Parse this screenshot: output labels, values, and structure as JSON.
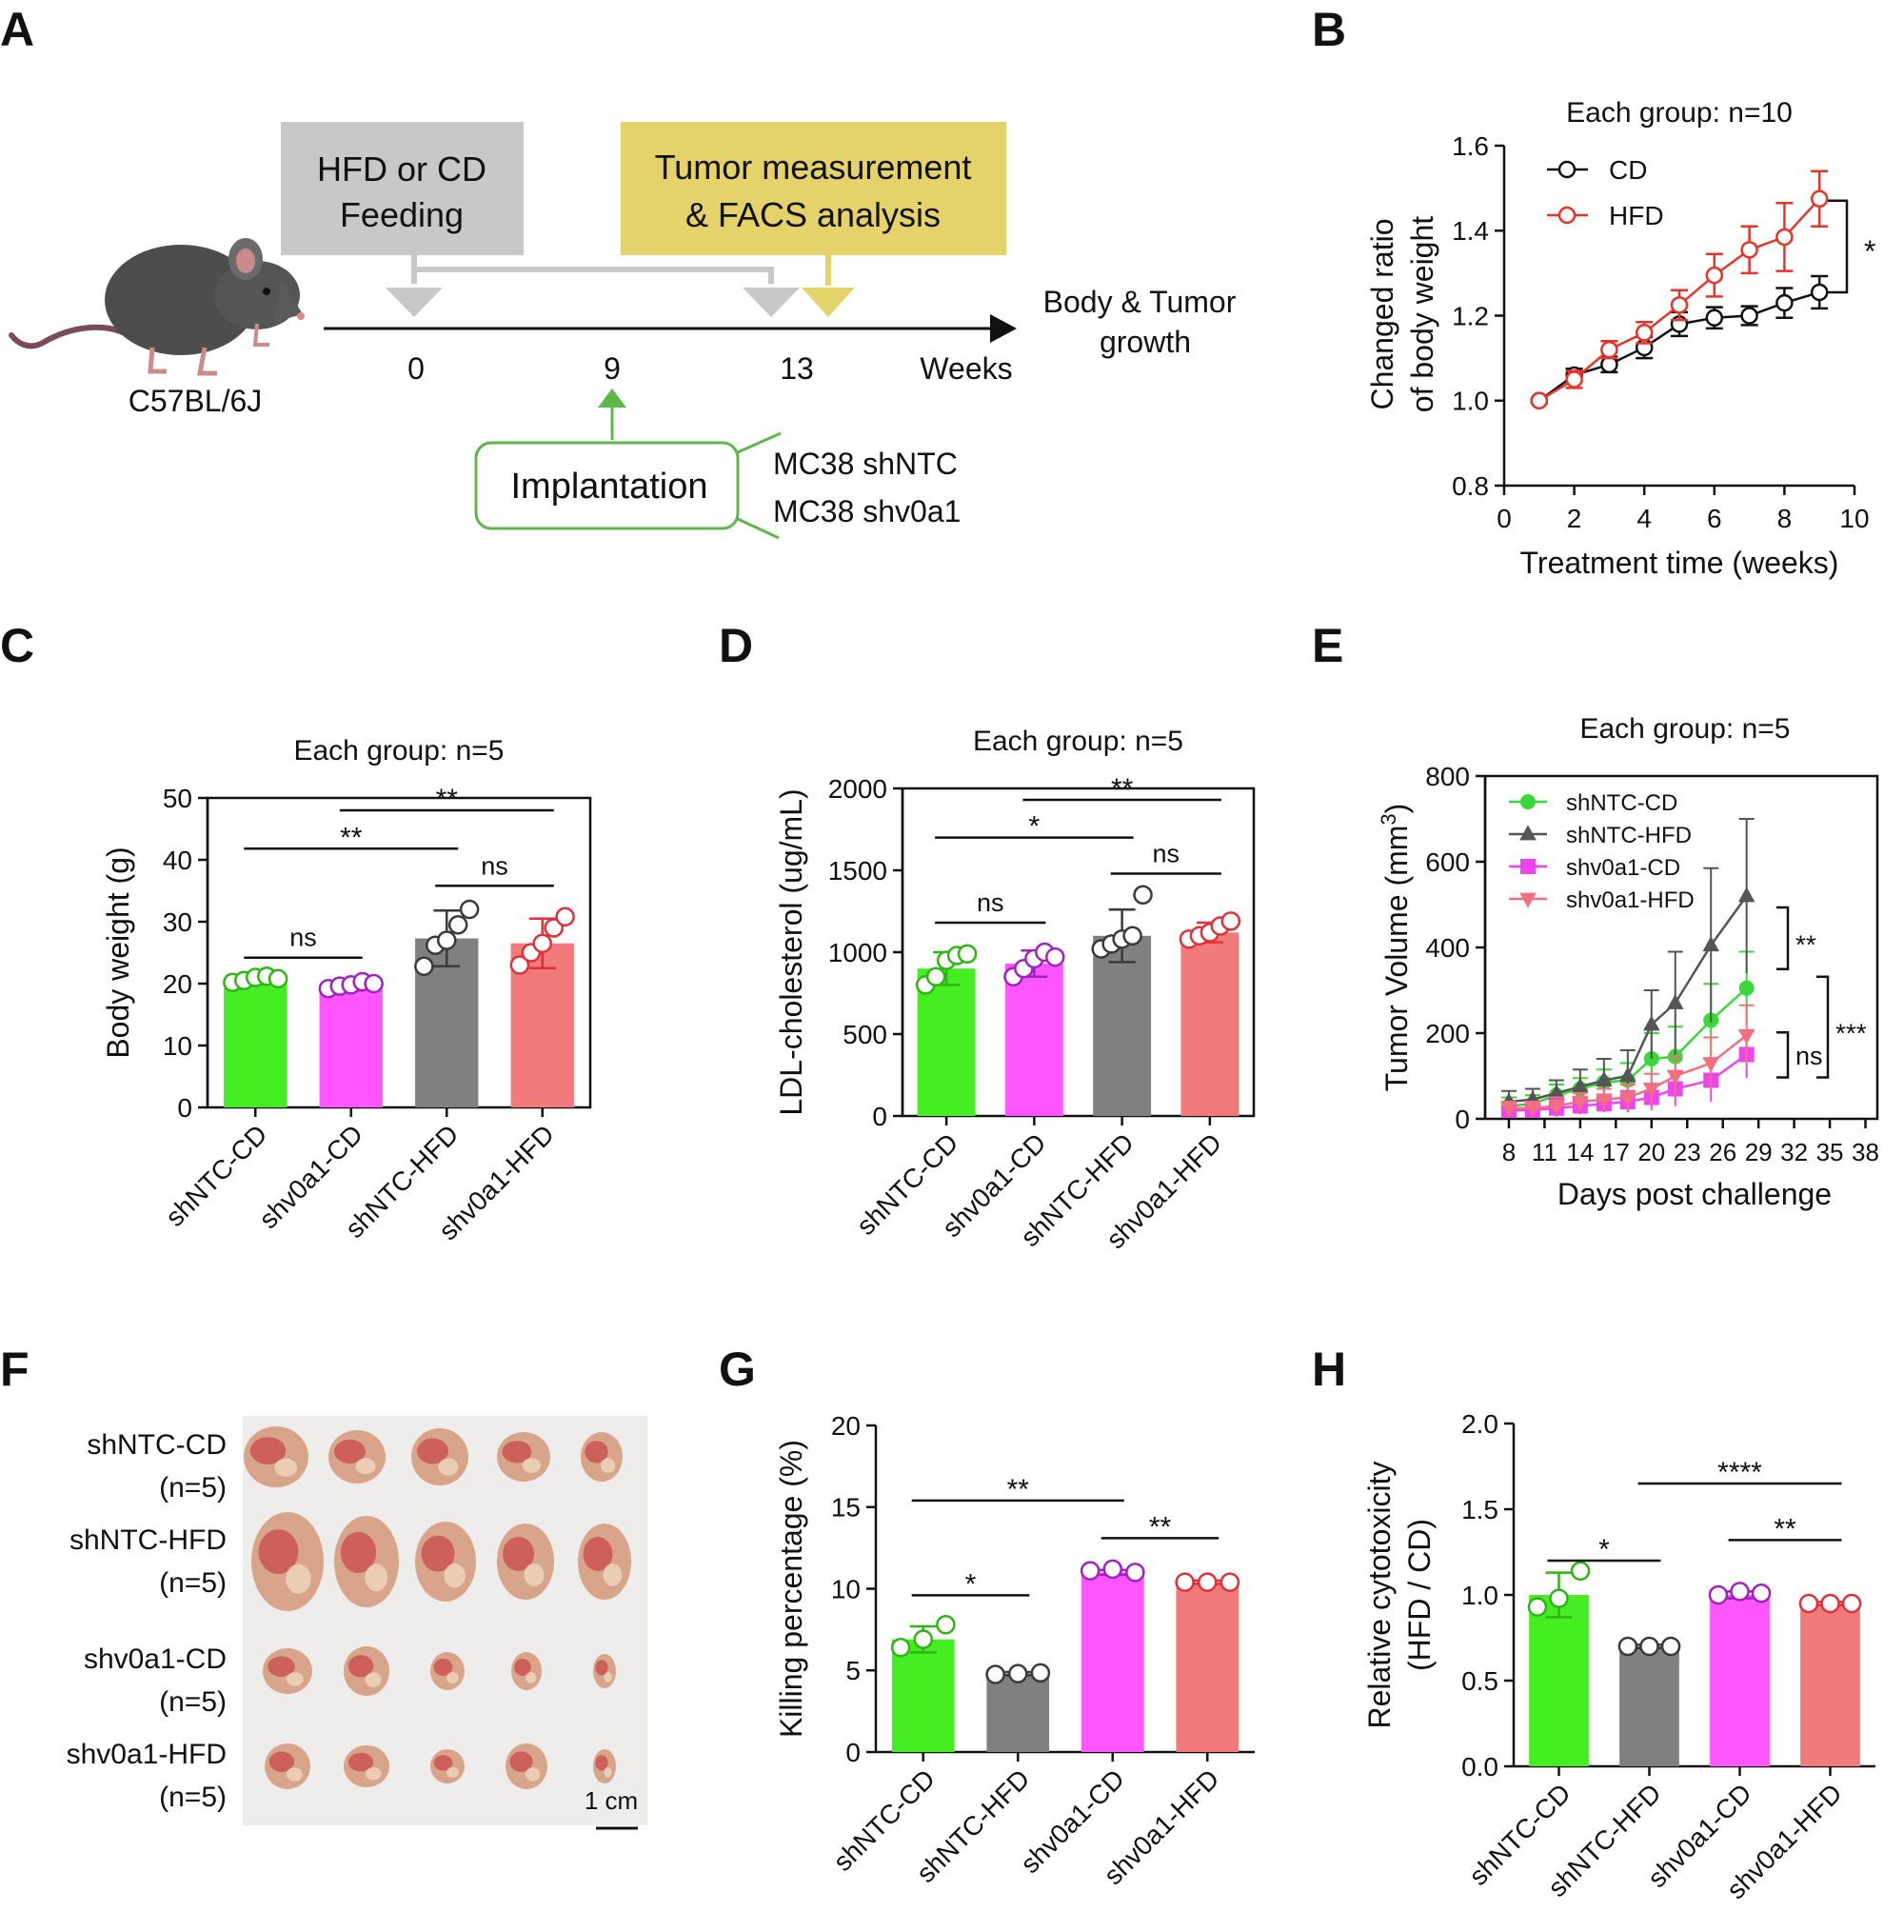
{
  "panel_labels": [
    "A",
    "B",
    "C",
    "D",
    "E",
    "F",
    "G",
    "H"
  ],
  "panelA": {
    "feeding": [
      "HFD or CD",
      "Feeding"
    ],
    "measure": [
      "Tumor measurement",
      "& FACS analysis"
    ],
    "mouse_label": "C57BL/6J",
    "ticks": [
      "0",
      "9",
      "13"
    ],
    "axis_unit": "Weeks",
    "end_label": [
      "Body & Tumor",
      "growth"
    ],
    "implantation": "Implantation",
    "lines": [
      "MC38 shNTC",
      "MC38 shv0a1"
    ],
    "colors": {
      "feeding_box": "#c8c8c8",
      "measure_box": "#e4d36a",
      "implant": "#5cb848"
    }
  },
  "panelF": {
    "rows": [
      {
        "label": "shNTC-CD",
        "n": "(n=5)"
      },
      {
        "label": "shNTC-HFD",
        "n": "(n=5)"
      },
      {
        "label": "shv0a1-CD",
        "n": "(n=5)"
      },
      {
        "label": "shv0a1-HFD",
        "n": "(n=5)"
      }
    ],
    "scale": "1 cm"
  },
  "chart_data": [
    {
      "panel": "B",
      "type": "line",
      "title": "Each group: n=10",
      "xlabel": "Treatment time (weeks)",
      "ylabel": [
        "Changed ratio",
        "of body weight"
      ],
      "xlim": [
        0,
        10
      ],
      "ylim": [
        0.8,
        1.6
      ],
      "xticks": [
        0,
        2,
        4,
        6,
        8,
        10
      ],
      "yticks": [
        0.8,
        1.0,
        1.2,
        1.4,
        1.6
      ],
      "ytick_labels": [
        "0.8",
        "1.0",
        "1.2",
        "1.4",
        "1.6"
      ],
      "x": [
        1,
        2,
        3,
        4,
        5,
        6,
        7,
        8,
        9
      ],
      "legend_position": "top-left",
      "series": [
        {
          "name": "CD",
          "color": "#111111",
          "values": [
            1.0,
            1.06,
            1.085,
            1.125,
            1.18,
            1.195,
            1.2,
            1.23,
            1.255
          ],
          "err": [
            0.005,
            0.015,
            0.018,
            0.025,
            0.028,
            0.025,
            0.022,
            0.035,
            0.038
          ]
        },
        {
          "name": "HFD",
          "color": "#e8332b",
          "values": [
            1.0,
            1.05,
            1.12,
            1.16,
            1.225,
            1.295,
            1.355,
            1.385,
            1.475
          ],
          "err": [
            0.005,
            0.02,
            0.02,
            0.025,
            0.035,
            0.05,
            0.055,
            0.08,
            0.065
          ]
        }
      ],
      "significance": "*"
    },
    {
      "panel": "C",
      "type": "bar",
      "title": "Each group: n=5",
      "ylabel": "Body weight (g)",
      "ylim": [
        0,
        50
      ],
      "yticks": [
        0,
        10,
        20,
        30,
        40,
        50
      ],
      "categories": [
        "shNTC-CD",
        "shv0a1-CD",
        "shNTC-HFD",
        "shv0a1-HFD"
      ],
      "colors": [
        "#44ee22",
        "#ff55ff",
        "#808080",
        "#f27a7a"
      ],
      "edge_colors": [
        "#2fb512",
        "#a020c0",
        "#3a3a3a",
        "#e0303a"
      ],
      "values": [
        20.8,
        19.8,
        27.3,
        26.5
      ],
      "err": [
        0.9,
        0.9,
        4.5,
        4.0
      ],
      "points": [
        [
          20.2,
          20.5,
          21.0,
          21.2,
          20.8
        ],
        [
          19.2,
          19.6,
          19.8,
          20.3,
          20.0
        ],
        [
          22.8,
          26.2,
          27.0,
          29.5,
          32.0
        ],
        [
          23.0,
          25.0,
          26.5,
          29.0,
          30.8
        ]
      ],
      "comparisons": [
        {
          "a": 0,
          "b": 1,
          "y": 24.2,
          "label": "ns"
        },
        {
          "a": 2,
          "b": 3,
          "y": 35.8,
          "label": "ns"
        },
        {
          "a": 0,
          "b": 2,
          "y": 41.8,
          "label": "**"
        },
        {
          "a": 1,
          "b": 3,
          "y": 48.0,
          "label": "**"
        }
      ]
    },
    {
      "panel": "D",
      "type": "bar",
      "title": "Each group: n=5",
      "ylabel": "LDL-cholesterol (ug/mL)",
      "ylim": [
        0,
        2000
      ],
      "yticks": [
        0,
        500,
        1000,
        1500,
        2000
      ],
      "categories": [
        "shNTC-CD",
        "shv0a1-CD",
        "shNTC-HFD",
        "shv0a1-HFD"
      ],
      "colors": [
        "#44ee22",
        "#ff55ff",
        "#808080",
        "#f27a7a"
      ],
      "edge_colors": [
        "#2fb512",
        "#a020c0",
        "#3a3a3a",
        "#e0303a"
      ],
      "values": [
        900,
        930,
        1100,
        1120
      ],
      "err": [
        100,
        80,
        160,
        60
      ],
      "points": [
        [
          800,
          850,
          950,
          980,
          990
        ],
        [
          850,
          900,
          960,
          1000,
          970
        ],
        [
          1020,
          1050,
          1080,
          1100,
          1350
        ],
        [
          1080,
          1100,
          1120,
          1160,
          1190
        ]
      ],
      "comparisons": [
        {
          "a": 0,
          "b": 1,
          "y": 1180,
          "label": "ns"
        },
        {
          "a": 2,
          "b": 3,
          "y": 1480,
          "label": "ns"
        },
        {
          "a": 0,
          "b": 2,
          "y": 1700,
          "label": "*"
        },
        {
          "a": 1,
          "b": 3,
          "y": 1930,
          "label": "**"
        }
      ]
    },
    {
      "panel": "E",
      "type": "line",
      "title": "Each group: n=5",
      "xlabel": "Days post challenge",
      "ylabel": "Tumor Volume (mm³)",
      "ylabel_text": "Tumor Volume (mm",
      "ylabel_sup": "3",
      "ylabel_close": ")",
      "xlim": [
        6,
        39
      ],
      "ylim": [
        0,
        800
      ],
      "xticks": [
        8,
        11,
        14,
        17,
        20,
        23,
        26,
        29,
        32,
        35,
        38
      ],
      "yticks": [
        0,
        200,
        400,
        600,
        800
      ],
      "x": [
        8,
        10,
        12,
        14,
        16,
        18,
        20,
        22,
        25,
        28
      ],
      "legend_position": "top-left",
      "series": [
        {
          "name": "shNTC-CD",
          "color": "#39d739",
          "marker": "circle",
          "values": [
            30,
            35,
            55,
            70,
            85,
            90,
            140,
            145,
            230,
            305
          ],
          "err": [
            20,
            20,
            25,
            25,
            30,
            40,
            60,
            70,
            85,
            85
          ]
        },
        {
          "name": "shNTC-HFD",
          "color": "#555555",
          "marker": "triangle",
          "values": [
            40,
            45,
            60,
            75,
            90,
            100,
            220,
            270,
            405,
            520
          ],
          "err": [
            25,
            25,
            30,
            40,
            50,
            60,
            80,
            120,
            180,
            180
          ]
        },
        {
          "name": "shv0a1-CD",
          "color": "#ee44ee",
          "marker": "square",
          "values": [
            20,
            20,
            25,
            30,
            35,
            40,
            50,
            70,
            90,
            150
          ],
          "err": [
            15,
            15,
            20,
            20,
            20,
            25,
            30,
            40,
            50,
            55
          ]
        },
        {
          "name": "shv0a1-HFD",
          "color": "#f07080",
          "marker": "triangle-down",
          "values": [
            25,
            25,
            30,
            40,
            45,
            50,
            70,
            100,
            130,
            195
          ],
          "err": [
            15,
            15,
            20,
            20,
            25,
            30,
            35,
            45,
            60,
            70
          ]
        }
      ],
      "significance": [
        {
          "from": "shNTC-HFD",
          "to": "shNTC-CD",
          "label": "**"
        },
        {
          "from": "shNTC-CD",
          "to": "shv0a1-CD",
          "label": "***"
        },
        {
          "from": "shv0a1-HFD",
          "to": "shv0a1-CD",
          "label": "ns"
        }
      ]
    },
    {
      "panel": "G",
      "type": "bar",
      "ylabel": "Killing percentage (%)",
      "ylim": [
        0,
        20
      ],
      "yticks": [
        0,
        5,
        10,
        15,
        20
      ],
      "categories": [
        "shNTC-CD",
        "shNTC-HFD",
        "shv0a1-CD",
        "shv0a1-HFD"
      ],
      "colors": [
        "#44ee22",
        "#808080",
        "#ff55ff",
        "#f27a7a"
      ],
      "edge_colors": [
        "#2fb512",
        "#3a3a3a",
        "#a020c0",
        "#e0303a"
      ],
      "values": [
        6.9,
        4.8,
        11.0,
        10.4
      ],
      "err": [
        0.8,
        0.1,
        0.15,
        0.1
      ],
      "points": [
        [
          6.4,
          6.9,
          7.8
        ],
        [
          4.75,
          4.8,
          4.85
        ],
        [
          11.1,
          11.2,
          11.0
        ],
        [
          10.4,
          10.4,
          10.4
        ]
      ],
      "comparisons": [
        {
          "a": 0,
          "b": 1,
          "y": 9.6,
          "label": "*"
        },
        {
          "a": 2,
          "b": 3,
          "y": 13.1,
          "label": "**"
        },
        {
          "a": 0,
          "b": 2,
          "y": 15.4,
          "label": "**"
        }
      ]
    },
    {
      "panel": "H",
      "type": "bar",
      "ylabel": [
        "Relative cytotoxicity",
        "(HFD / CD)"
      ],
      "ylim": [
        0,
        2.0
      ],
      "yticks": [
        0,
        0.5,
        1.0,
        1.5,
        2.0
      ],
      "ytick_labels": [
        "0.0",
        "0.5",
        "1.0",
        "1.5",
        "2.0"
      ],
      "categories": [
        "shNTC-CD",
        "shNTC-HFD",
        "shv0a1-CD",
        "shv0a1-HFD"
      ],
      "colors": [
        "#44ee22",
        "#808080",
        "#ff55ff",
        "#f27a7a"
      ],
      "edge_colors": [
        "#2fb512",
        "#3a3a3a",
        "#a020c0",
        "#e0303a"
      ],
      "values": [
        1.0,
        0.7,
        1.0,
        0.95
      ],
      "err": [
        0.13,
        0.01,
        0.02,
        0.01
      ],
      "points": [
        [
          0.93,
          0.98,
          1.14
        ],
        [
          0.7,
          0.7,
          0.7
        ],
        [
          1.0,
          1.02,
          1.01
        ],
        [
          0.95,
          0.95,
          0.95
        ]
      ],
      "comparisons": [
        {
          "a": 0,
          "b": 1,
          "y": 1.2,
          "label": "*"
        },
        {
          "a": 2,
          "b": 3,
          "y": 1.32,
          "label": "**"
        },
        {
          "a": 1,
          "b": 3,
          "y": 1.65,
          "label": "****"
        }
      ]
    }
  ]
}
